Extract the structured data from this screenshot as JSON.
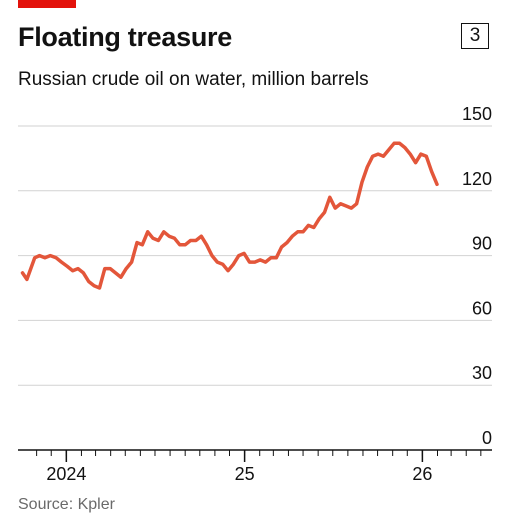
{
  "header": {
    "title": "Floating treasure",
    "chart_number": "3",
    "subtitle": "Russian crude oil on water, million barrels"
  },
  "source": "Source: Kpler",
  "colors": {
    "accent": "#e3120b",
    "line": "#e3563a",
    "grid": "#d2d2d2",
    "axis": "#121212"
  },
  "chart_data": {
    "type": "line",
    "title": "Floating treasure",
    "subtitle": "Russian crude oil on water, million barrels",
    "xlabel": "",
    "ylabel": "",
    "xlim": [
      "2023-10-01",
      "2026-04-01"
    ],
    "ylim": [
      0,
      150
    ],
    "y_ticks": [
      0,
      30,
      60,
      90,
      120,
      150
    ],
    "x_ticks": [
      {
        "label": "2024",
        "date": "2024-01-01"
      },
      {
        "label": "25",
        "date": "2025-01-01"
      },
      {
        "label": "26",
        "date": "2026-01-01"
      }
    ],
    "grid": true,
    "series": [
      {
        "points": [
          [
            "2023-10-03",
            82
          ],
          [
            "2023-10-12",
            79
          ],
          [
            "2023-10-28",
            89
          ],
          [
            "2023-11-07",
            90
          ],
          [
            "2023-11-18",
            89
          ],
          [
            "2023-11-29",
            90
          ],
          [
            "2023-12-11",
            89
          ],
          [
            "2023-12-22",
            87
          ],
          [
            "2024-01-03",
            85
          ],
          [
            "2024-01-14",
            83
          ],
          [
            "2024-01-25",
            84
          ],
          [
            "2024-02-05",
            82
          ],
          [
            "2024-02-16",
            78
          ],
          [
            "2024-02-27",
            76
          ],
          [
            "2024-03-09",
            75
          ],
          [
            "2024-03-20",
            84
          ],
          [
            "2024-03-31",
            84
          ],
          [
            "2024-04-11",
            82
          ],
          [
            "2024-04-22",
            80
          ],
          [
            "2024-05-03",
            84
          ],
          [
            "2024-05-14",
            87
          ],
          [
            "2024-05-25",
            96
          ],
          [
            "2024-06-05",
            95
          ],
          [
            "2024-06-16",
            101
          ],
          [
            "2024-06-27",
            98
          ],
          [
            "2024-07-08",
            97
          ],
          [
            "2024-07-19",
            101
          ],
          [
            "2024-07-30",
            99
          ],
          [
            "2024-08-10",
            98
          ],
          [
            "2024-08-21",
            95
          ],
          [
            "2024-09-01",
            95
          ],
          [
            "2024-09-12",
            97
          ],
          [
            "2024-09-23",
            97
          ],
          [
            "2024-10-04",
            99
          ],
          [
            "2024-10-15",
            95
          ],
          [
            "2024-10-26",
            90
          ],
          [
            "2024-11-06",
            87
          ],
          [
            "2024-11-17",
            86
          ],
          [
            "2024-11-28",
            83
          ],
          [
            "2024-12-09",
            86
          ],
          [
            "2024-12-20",
            90
          ],
          [
            "2024-12-31",
            91
          ],
          [
            "2025-01-11",
            87
          ],
          [
            "2025-01-22",
            87
          ],
          [
            "2025-02-02",
            88
          ],
          [
            "2025-02-13",
            87
          ],
          [
            "2025-02-24",
            89
          ],
          [
            "2025-03-07",
            89
          ],
          [
            "2025-03-18",
            94
          ],
          [
            "2025-03-29",
            96
          ],
          [
            "2025-04-09",
            99
          ],
          [
            "2025-04-20",
            101
          ],
          [
            "2025-05-01",
            101
          ],
          [
            "2025-05-12",
            104
          ],
          [
            "2025-05-23",
            103
          ],
          [
            "2025-06-03",
            107
          ],
          [
            "2025-06-14",
            110
          ],
          [
            "2025-06-25",
            117
          ],
          [
            "2025-07-06",
            112
          ],
          [
            "2025-07-17",
            114
          ],
          [
            "2025-07-28",
            113
          ],
          [
            "2025-08-08",
            112
          ],
          [
            "2025-08-19",
            114
          ],
          [
            "2025-08-30",
            124
          ],
          [
            "2025-09-10",
            131
          ],
          [
            "2025-09-21",
            136
          ],
          [
            "2025-10-02",
            137
          ],
          [
            "2025-10-13",
            136
          ],
          [
            "2025-10-24",
            139
          ],
          [
            "2025-11-04",
            142
          ],
          [
            "2025-11-15",
            142
          ],
          [
            "2025-11-26",
            140
          ],
          [
            "2025-12-07",
            137
          ],
          [
            "2025-12-18",
            133
          ],
          [
            "2025-12-29",
            137
          ],
          [
            "2026-01-09",
            136
          ],
          [
            "2026-01-20",
            129
          ],
          [
            "2026-01-31",
            123
          ]
        ]
      }
    ]
  }
}
